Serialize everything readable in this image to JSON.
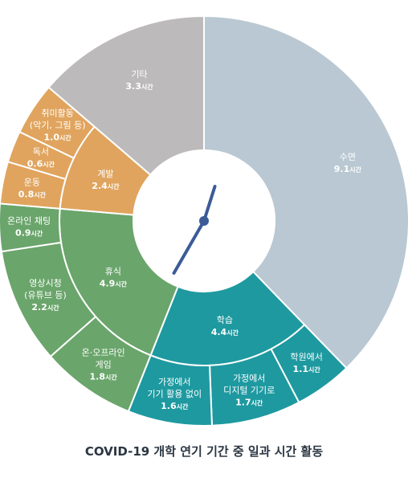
{
  "title": "COVID-19 개학 연기 기간 중 일과 시간 활동",
  "unit": "시간",
  "chart_data": {
    "type": "pie",
    "subtype": "nested-donut",
    "title": "COVID-19 개학 연기 기간 중 일과 시간 활동",
    "unit": "시간",
    "groups": [
      {
        "name": "수면",
        "value": 9.1,
        "color": "#b9c8d2",
        "children": [
          {
            "name": "",
            "value": 9.1,
            "color": "#b9c8d2"
          }
        ]
      },
      {
        "name": "학습",
        "value": 4.4,
        "color": "#1e99a0",
        "children": [
          {
            "name": "학원에서",
            "value": 1.1,
            "color": "#1e99a0"
          },
          {
            "name": "가정에서 디지털 기기로",
            "lines": [
              "가정에서",
              "디지털 기기로"
            ],
            "value": 1.7,
            "color": "#1e99a0"
          },
          {
            "name": "가정에서 기기 활용 없이",
            "lines": [
              "가정에서",
              "기기 활용 없이"
            ],
            "value": 1.6,
            "color": "#1e99a0"
          }
        ]
      },
      {
        "name": "휴식",
        "value": 4.9,
        "color": "#6aa56b",
        "children": [
          {
            "name": "온·오프라인 게임",
            "lines": [
              "온·오프라인",
              "게임"
            ],
            "value": 1.8,
            "color": "#6aa56b"
          },
          {
            "name": "영상시청 (유튜브 등)",
            "lines": [
              "영상시청",
              "(유튜브 등)"
            ],
            "value": 2.2,
            "color": "#6aa56b"
          },
          {
            "name": "온라인 채팅",
            "lines": [
              "온라인 채팅"
            ],
            "value": 0.9,
            "color": "#6aa56b"
          }
        ]
      },
      {
        "name": "계발",
        "value": 2.4,
        "color": "#e0a45e",
        "children": [
          {
            "name": "운동",
            "lines": [
              "운동"
            ],
            "value": 0.8,
            "color": "#e0a45e"
          },
          {
            "name": "독서",
            "lines": [
              "독서"
            ],
            "value": 0.6,
            "color": "#e0a45e"
          },
          {
            "name": "취미활동 (악기, 그림 등)",
            "lines": [
              "취미활동",
              "(악기, 그림 등)"
            ],
            "value": 1.0,
            "color": "#e0a45e"
          }
        ]
      },
      {
        "name": "기타",
        "value": 3.3,
        "color": "#bdbabb",
        "children": [
          {
            "name": "",
            "value": 3.3,
            "color": "#bdbabb"
          }
        ]
      }
    ],
    "clock_hands": {
      "hour": 12,
      "minute": 35,
      "color": "#3b5b98"
    }
  }
}
